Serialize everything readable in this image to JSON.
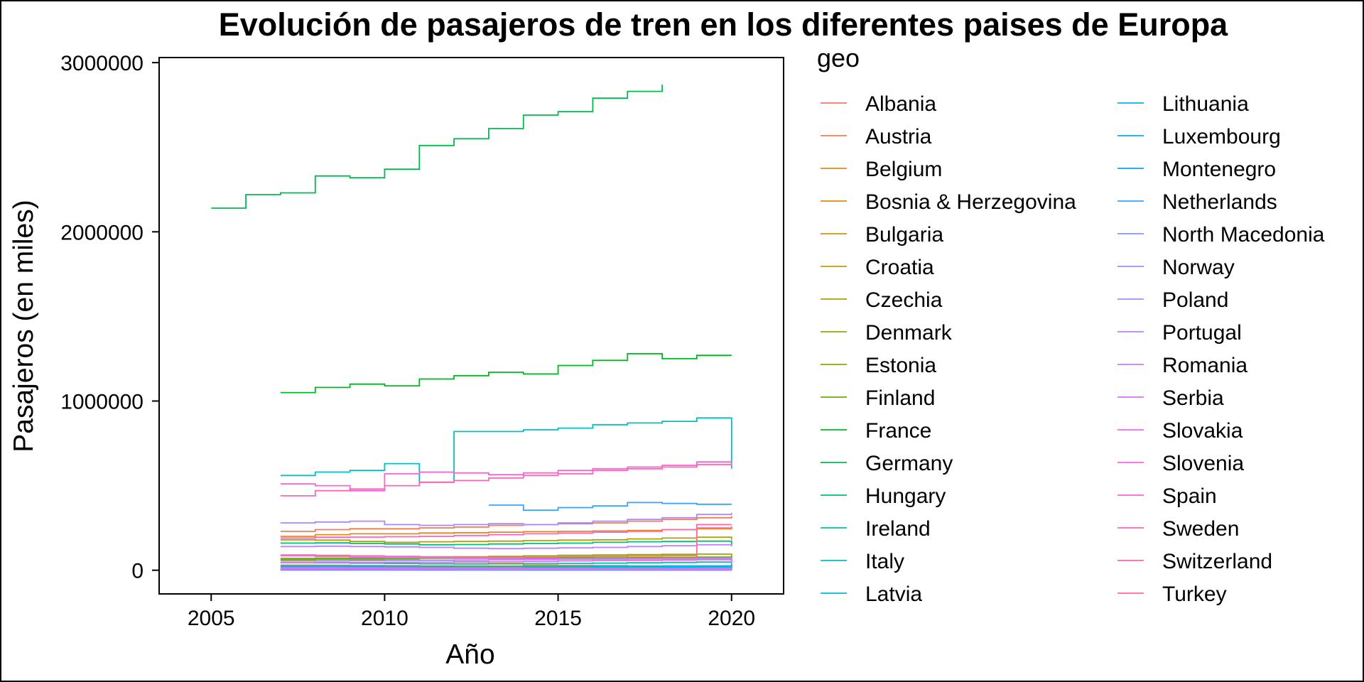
{
  "chart_data": {
    "type": "line",
    "step": true,
    "title": "Evolución de pasajeros de tren en los diferentes paises de Europa",
    "xlabel": "Año",
    "ylabel": "Pasajeros (en miles)",
    "xlim": [
      2003.5,
      2021.5
    ],
    "ylim": [
      -140000,
      3030000
    ],
    "xticks": [
      2005,
      2010,
      2015,
      2020
    ],
    "yticks": [
      0,
      1000000,
      2000000,
      3000000
    ],
    "xtick_labels": [
      "2005",
      "2010",
      "2015",
      "2020"
    ],
    "ytick_labels": [
      "0",
      "1000000",
      "2000000",
      "3000000"
    ],
    "legend_title": "geo",
    "legend_position": "right",
    "series": [
      {
        "name": "Albania",
        "color": "#F8766D",
        "x": [
          2007,
          2008,
          2009,
          2010,
          2011,
          2012,
          2013,
          2014,
          2015,
          2016,
          2017,
          2018,
          2019,
          2020
        ],
        "values": [
          8000,
          7000,
          6000,
          5000,
          4000,
          3000,
          2500,
          2000,
          1500,
          1200,
          1000,
          900,
          800,
          500
        ]
      },
      {
        "name": "Austria",
        "color": "#F27D53",
        "x": [
          2007,
          2008,
          2009,
          2010,
          2011,
          2012,
          2013,
          2014,
          2015,
          2016,
          2017,
          2018,
          2019,
          2020
        ],
        "values": [
          230000,
          240000,
          245000,
          245000,
          250000,
          255000,
          265000,
          270000,
          275000,
          280000,
          290000,
          300000,
          310000,
          320000
        ]
      },
      {
        "name": "Belgium",
        "color": "#E7861B",
        "x": [
          2007,
          2008,
          2009,
          2010,
          2011,
          2012,
          2013,
          2014,
          2015,
          2016,
          2017,
          2018,
          2019,
          2020
        ],
        "values": [
          200000,
          210000,
          215000,
          215000,
          220000,
          222000,
          225000,
          228000,
          230000,
          232000,
          235000,
          240000,
          245000,
          250000
        ]
      },
      {
        "name": "Bosnia & Herzegovina",
        "color": "#DB8E00",
        "x": [
          2007,
          2008,
          2009,
          2010,
          2011,
          2012,
          2013,
          2014,
          2015,
          2016,
          2017,
          2018,
          2019,
          2020
        ],
        "values": [
          1500,
          1400,
          1300,
          1200,
          1100,
          1000,
          900,
          800,
          700,
          600,
          500,
          500,
          400,
          300
        ]
      },
      {
        "name": "Bulgaria",
        "color": "#CE9700",
        "x": [
          2007,
          2008,
          2009,
          2010,
          2011,
          2012,
          2013,
          2014,
          2015,
          2016,
          2017,
          2018,
          2019,
          2020
        ],
        "values": [
          30000,
          29000,
          28000,
          27000,
          26000,
          25000,
          24000,
          23000,
          22000,
          22000,
          21000,
          21000,
          20000,
          15000
        ]
      },
      {
        "name": "Croatia",
        "color": "#C09F00",
        "x": [
          2007,
          2008,
          2009,
          2010,
          2011,
          2012,
          2013,
          2014,
          2015,
          2016,
          2017,
          2018,
          2019,
          2020
        ],
        "values": [
          60000,
          65000,
          62000,
          60000,
          58000,
          50000,
          40000,
          30000,
          28000,
          27000,
          26000,
          26000,
          25000,
          20000
        ]
      },
      {
        "name": "Czechia",
        "color": "#AFA100",
        "x": [
          2007,
          2008,
          2009,
          2010,
          2011,
          2012,
          2013,
          2014,
          2015,
          2016,
          2017,
          2018,
          2019,
          2020
        ],
        "values": [
          180000,
          178000,
          170000,
          165000,
          168000,
          170000,
          172000,
          175000,
          178000,
          180000,
          185000,
          190000,
          195000,
          180000
        ]
      },
      {
        "name": "Denmark",
        "color": "#99A800",
        "x": [
          2007,
          2008,
          2009,
          2010,
          2011,
          2012,
          2013,
          2014,
          2015,
          2016,
          2017,
          2018,
          2019,
          2020
        ],
        "values": [
          70000,
          72000,
          73000,
          75000,
          78000,
          80000,
          82000,
          85000,
          88000,
          90000,
          92000,
          94000,
          95000,
          70000
        ]
      },
      {
        "name": "Estonia",
        "color": "#82AD00",
        "x": [
          2007,
          2008,
          2009,
          2010,
          2011,
          2012,
          2013,
          2014,
          2015,
          2016,
          2017,
          2018,
          2019,
          2020
        ],
        "values": [
          5000,
          5000,
          5200,
          5300,
          5500,
          5800,
          6000,
          6500,
          6800,
          7000,
          7200,
          7500,
          7800,
          6000
        ]
      },
      {
        "name": "Finland",
        "color": "#64B200",
        "x": [
          2007,
          2008,
          2009,
          2010,
          2011,
          2012,
          2013,
          2014,
          2015,
          2016,
          2017,
          2018,
          2019,
          2020
        ],
        "values": [
          65000,
          67000,
          68000,
          68000,
          70000,
          70000,
          71000,
          72000,
          73000,
          74000,
          75000,
          76000,
          78000,
          70000
        ]
      },
      {
        "name": "France",
        "color": "#00B81F",
        "x": [
          2007,
          2008,
          2009,
          2010,
          2011,
          2012,
          2013,
          2014,
          2015,
          2016,
          2017,
          2018,
          2019,
          2020
        ],
        "values": [
          1050000,
          1080000,
          1100000,
          1090000,
          1130000,
          1150000,
          1170000,
          1160000,
          1210000,
          1240000,
          1280000,
          1250000,
          1270000,
          1270000
        ]
      },
      {
        "name": "Germany",
        "color": "#00BB4E",
        "x": [
          2005,
          2006,
          2007,
          2008,
          2009,
          2010,
          2011,
          2012,
          2013,
          2014,
          2015,
          2016,
          2017,
          2018
        ],
        "values": [
          2140000,
          2220000,
          2230000,
          2330000,
          2320000,
          2370000,
          2510000,
          2550000,
          2610000,
          2690000,
          2710000,
          2790000,
          2830000,
          2870000
        ]
      },
      {
        "name": "Hungary",
        "color": "#00BF7D",
        "x": [
          2007,
          2008,
          2009,
          2010,
          2011,
          2012,
          2013,
          2014,
          2015,
          2016,
          2017,
          2018,
          2019,
          2020
        ],
        "values": [
          160000,
          162000,
          158000,
          155000,
          150000,
          152000,
          155000,
          158000,
          160000,
          165000,
          168000,
          170000,
          172000,
          150000
        ]
      },
      {
        "name": "Ireland",
        "color": "#00C1A3",
        "x": [
          2007,
          2008,
          2009,
          2010,
          2011,
          2012,
          2013,
          2014,
          2015,
          2016,
          2017,
          2018,
          2019,
          2020
        ],
        "values": [
          45000,
          44000,
          42000,
          40000,
          38000,
          37000,
          38000,
          39000,
          40000,
          42000,
          44000,
          46000,
          48000,
          20000
        ]
      },
      {
        "name": "Italy",
        "color": "#00C0C0",
        "x": [
          2007,
          2008,
          2009,
          2010,
          2011,
          2012,
          2013,
          2014,
          2015,
          2016,
          2017,
          2018,
          2019,
          2020
        ],
        "values": [
          560000,
          580000,
          590000,
          630000,
          520000,
          820000,
          820000,
          830000,
          840000,
          860000,
          870000,
          880000,
          900000,
          600000
        ]
      },
      {
        "name": "Latvia",
        "color": "#00BCD8",
        "x": [
          2007,
          2008,
          2009,
          2010,
          2011,
          2012,
          2013,
          2014,
          2015,
          2016,
          2017,
          2018,
          2019,
          2020
        ],
        "values": [
          25000,
          25000,
          24000,
          23000,
          22000,
          21000,
          20000,
          19000,
          19000,
          18000,
          18000,
          18000,
          18000,
          12000
        ]
      },
      {
        "name": "Lithuania",
        "color": "#00B6EB",
        "x": [
          2007,
          2008,
          2009,
          2010,
          2011,
          2012,
          2013,
          2014,
          2015,
          2016,
          2017,
          2018,
          2019,
          2020
        ],
        "values": [
          7000,
          7000,
          6500,
          6000,
          5500,
          5000,
          5000,
          4800,
          4500,
          4300,
          4500,
          4700,
          5000,
          3500
        ]
      },
      {
        "name": "Luxembourg",
        "color": "#00AEFA",
        "x": [
          2007,
          2008,
          2009,
          2010,
          2011,
          2012,
          2013,
          2014,
          2015,
          2016,
          2017,
          2018,
          2019,
          2020
        ],
        "values": [
          18000,
          18500,
          19000,
          19500,
          20000,
          20500,
          21000,
          21500,
          22000,
          23000,
          23500,
          24000,
          25000,
          20000
        ]
      },
      {
        "name": "Montenegro",
        "color": "#00A5FF",
        "x": [
          2007,
          2008,
          2009,
          2010,
          2011,
          2012,
          2013,
          2014,
          2015,
          2016,
          2017,
          2018,
          2019,
          2020
        ],
        "values": [
          2000,
          2000,
          1900,
          1800,
          1700,
          1600,
          1500,
          1500,
          1500,
          1400,
          1400,
          1400,
          1400,
          800
        ]
      },
      {
        "name": "Netherlands",
        "color": "#35A2FF",
        "x": [
          2013,
          2014,
          2015,
          2016,
          2017,
          2018,
          2019,
          2020
        ],
        "values": [
          385000,
          355000,
          370000,
          380000,
          400000,
          395000,
          390000,
          390000
        ]
      },
      {
        "name": "North Macedonia",
        "color": "#7997FF",
        "x": [
          2007,
          2008,
          2009,
          2010,
          2011,
          2012,
          2013,
          2014,
          2015,
          2016,
          2017,
          2018,
          2019,
          2020
        ],
        "values": [
          1200,
          1200,
          1100,
          1000,
          1000,
          900,
          900,
          800,
          800,
          700,
          700,
          600,
          600,
          400
        ]
      },
      {
        "name": "Norway",
        "color": "#9590FF",
        "x": [
          2007,
          2008,
          2009,
          2010,
          2011,
          2012,
          2013,
          2014,
          2015,
          2016,
          2017,
          2018,
          2019,
          2020
        ],
        "values": [
          55000,
          56000,
          57000,
          58000,
          59000,
          60000,
          62000,
          63000,
          65000,
          66000,
          68000,
          70000,
          72000,
          50000
        ]
      },
      {
        "name": "Poland",
        "color": "#AC88FF",
        "x": [
          2007,
          2008,
          2009,
          2010,
          2011,
          2012,
          2013,
          2014,
          2015,
          2016,
          2017,
          2018,
          2019,
          2020
        ],
        "values": [
          280000,
          285000,
          290000,
          270000,
          265000,
          270000,
          275000,
          270000,
          280000,
          290000,
          300000,
          310000,
          330000,
          340000
        ]
      },
      {
        "name": "Portugal",
        "color": "#BF80FF",
        "x": [
          2007,
          2008,
          2009,
          2010,
          2011,
          2012,
          2013,
          2014,
          2015,
          2016,
          2017,
          2018,
          2019,
          2020
        ],
        "values": [
          140000,
          142000,
          140000,
          138000,
          135000,
          130000,
          128000,
          130000,
          132000,
          135000,
          140000,
          145000,
          150000,
          140000
        ]
      },
      {
        "name": "Romania",
        "color": "#D078FF",
        "x": [
          2007,
          2008,
          2009,
          2010,
          2011,
          2012,
          2013,
          2014,
          2015,
          2016,
          2017,
          2018,
          2019,
          2020
        ],
        "values": [
          85000,
          82000,
          78000,
          75000,
          72000,
          70000,
          68000,
          66000,
          64000,
          65000,
          66000,
          66000,
          67000,
          40000
        ]
      },
      {
        "name": "Serbia",
        "color": "#DE71F9",
        "x": [
          2007,
          2008,
          2009,
          2010,
          2011,
          2012,
          2013,
          2014,
          2015,
          2016,
          2017,
          2018,
          2019,
          2020
        ],
        "values": [
          10000,
          10000,
          9500,
          9000,
          9000,
          8500,
          8000,
          7500,
          7000,
          6500,
          6000,
          5500,
          5000,
          3000
        ]
      },
      {
        "name": "Slovakia",
        "color": "#E96AEF",
        "x": [
          2007,
          2008,
          2009,
          2010,
          2011,
          2012,
          2013,
          2014,
          2015,
          2016,
          2017,
          2018,
          2019,
          2020
        ],
        "values": [
          45000,
          46000,
          46000,
          47000,
          47000,
          48000,
          50000,
          52000,
          55000,
          57000,
          58000,
          60000,
          62000,
          45000
        ]
      },
      {
        "name": "Slovenia",
        "color": "#F365E3",
        "x": [
          2007,
          2008,
          2009,
          2010,
          2011,
          2012,
          2013,
          2014,
          2015,
          2016,
          2017,
          2018,
          2019,
          2020
        ],
        "values": [
          15000,
          15000,
          14500,
          14000,
          13500,
          13000,
          12500,
          12000,
          12000,
          11500,
          11500,
          11500,
          12000,
          8000
        ]
      },
      {
        "name": "Spain",
        "color": "#FA62D5",
        "x": [
          2007,
          2008,
          2009,
          2010,
          2011,
          2012,
          2013,
          2014,
          2015,
          2016,
          2017,
          2018,
          2019,
          2020
        ],
        "values": [
          510000,
          500000,
          470000,
          570000,
          580000,
          575000,
          565000,
          575000,
          590000,
          600000,
          610000,
          620000,
          640000,
          640000
        ]
      },
      {
        "name": "Sweden",
        "color": "#FE61C4",
        "x": [
          2007,
          2008,
          2009,
          2010,
          2011,
          2012,
          2013,
          2014,
          2015,
          2016,
          2017,
          2018,
          2019,
          2020
        ],
        "values": [
          190000,
          195000,
          196000,
          198000,
          200000,
          205000,
          210000,
          215000,
          220000,
          225000,
          230000,
          240000,
          250000,
          260000
        ]
      },
      {
        "name": "Switzerland",
        "color": "#FF63B3",
        "x": [
          2007,
          2008,
          2009,
          2010,
          2011,
          2012,
          2013,
          2014,
          2015,
          2016,
          2017,
          2018,
          2019,
          2020
        ],
        "values": [
          440000,
          470000,
          480000,
          500000,
          520000,
          530000,
          545000,
          560000,
          570000,
          590000,
          600000,
          610000,
          625000,
          640000
        ]
      },
      {
        "name": "Turkey",
        "color": "#FF6A98",
        "x": [
          2007,
          2008,
          2009,
          2010,
          2011,
          2012,
          2013,
          2014,
          2015,
          2016,
          2017,
          2018,
          2019,
          2020
        ],
        "values": [
          90000,
          88000,
          85000,
          82000,
          80000,
          78000,
          76000,
          78000,
          80000,
          82000,
          84000,
          86000,
          270000,
          270000
        ]
      }
    ]
  }
}
